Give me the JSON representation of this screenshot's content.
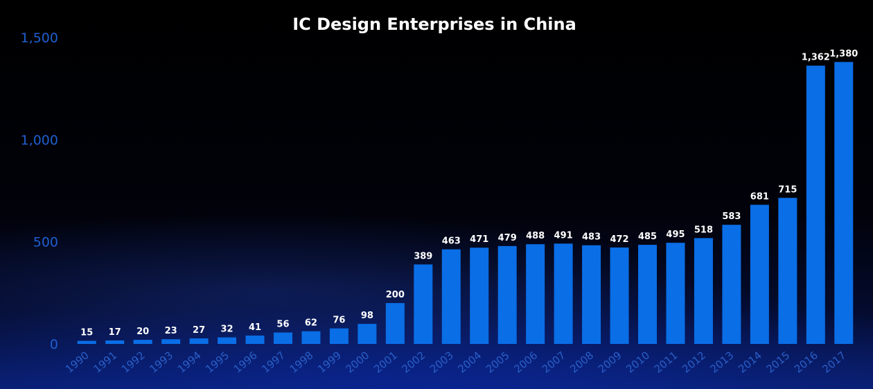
{
  "chart_data": {
    "type": "bar",
    "title": "IC Design Enterprises in China",
    "xlabel": "",
    "ylabel": "",
    "ylim": [
      0,
      1500
    ],
    "yticks": [
      0,
      500,
      1000,
      1500
    ],
    "ytick_labels": [
      "0",
      "500",
      "1,000",
      "1,500"
    ],
    "grid": false,
    "categories": [
      "1990",
      "1991",
      "1992",
      "1993",
      "1994",
      "1995",
      "1996",
      "1997",
      "1998",
      "1999",
      "2000",
      "2001",
      "2002",
      "2003",
      "2004",
      "2005",
      "2006",
      "2007",
      "2008",
      "2009",
      "2010",
      "2011",
      "2012",
      "2013",
      "2014",
      "2015",
      "2016",
      "2017"
    ],
    "values": [
      15,
      17,
      20,
      23,
      27,
      32,
      41,
      56,
      62,
      76,
      98,
      200,
      389,
      463,
      471,
      479,
      488,
      491,
      483,
      472,
      485,
      495,
      518,
      583,
      681,
      715,
      1362,
      1380
    ],
    "data_labels": [
      "15",
      "17",
      "20",
      "23",
      "27",
      "32",
      "41",
      "56",
      "62",
      "76",
      "98",
      "200",
      "389",
      "463",
      "471",
      "479",
      "488",
      "491",
      "483",
      "472",
      "485",
      "495",
      "518",
      "583",
      "681",
      "715",
      "1,362",
      "1,380"
    ],
    "colors": {
      "bar": "#0a6ee6",
      "title": "#ffffff",
      "tick": "#1f5fd0",
      "data_label": "#ffffff"
    }
  }
}
